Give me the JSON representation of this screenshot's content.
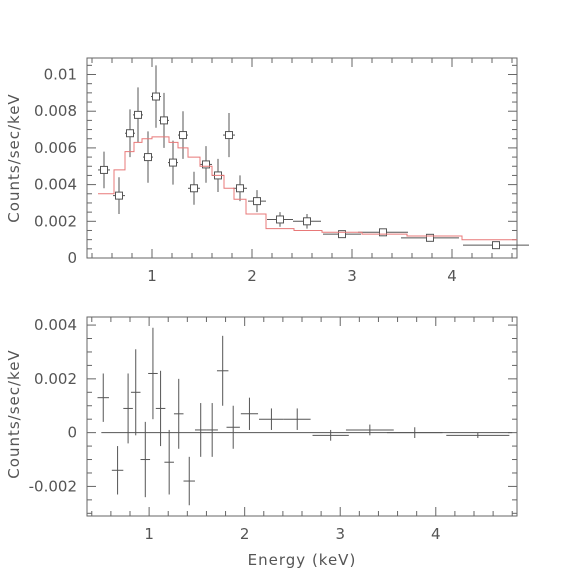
{
  "chart_data": [
    {
      "type": "scatter",
      "title": "",
      "xlabel": "",
      "ylabel": "Counts/sec/keV",
      "xlim": [
        0.35,
        4.65
      ],
      "ylim": [
        0,
        0.0109
      ],
      "x_ticks": [
        1,
        2,
        3,
        4
      ],
      "x_tick_labels": [
        "1",
        "2",
        "3",
        "4"
      ],
      "y_ticks": [
        0,
        0.002,
        0.004,
        0.006,
        0.008,
        0.01
      ],
      "y_tick_labels": [
        "0",
        "0.002",
        "0.004",
        "0.006",
        "0.008",
        "0.01"
      ],
      "grid": false,
      "colors": {
        "data": "#555555",
        "model": "#e87878",
        "axes": "#666666"
      },
      "series": [
        {
          "kind": "data-points",
          "x": [
            0.52,
            0.67,
            0.78,
            0.86,
            0.96,
            1.04,
            1.12,
            1.21,
            1.31,
            1.42,
            1.54,
            1.66,
            1.77,
            1.88,
            2.05,
            2.28,
            2.55,
            2.9,
            3.31,
            3.78,
            4.44
          ],
          "xerr": [
            0.06,
            0.06,
            0.05,
            0.05,
            0.05,
            0.05,
            0.05,
            0.05,
            0.05,
            0.06,
            0.06,
            0.06,
            0.06,
            0.07,
            0.09,
            0.13,
            0.14,
            0.19,
            0.25,
            0.29,
            0.33
          ],
          "y": [
            0.0048,
            0.0034,
            0.0068,
            0.0078,
            0.0055,
            0.0088,
            0.0075,
            0.0052,
            0.0067,
            0.0038,
            0.0051,
            0.0045,
            0.0067,
            0.0038,
            0.0031,
            0.0021,
            0.002,
            0.0013,
            0.0014,
            0.0011,
            0.0007
          ],
          "yerr": [
            0.001,
            0.001,
            0.0013,
            0.0015,
            0.0014,
            0.0017,
            0.0015,
            0.0012,
            0.0013,
            0.0009,
            0.001,
            0.0009,
            0.0012,
            0.0007,
            0.0006,
            0.0004,
            0.0004,
            0.0002,
            0.0002,
            0.0002,
            0.0001
          ]
        },
        {
          "kind": "model-step",
          "x_edges": [
            0.46,
            0.62,
            0.73,
            0.82,
            0.9,
            1.0,
            1.1,
            1.17,
            1.26,
            1.36,
            1.48,
            1.6,
            1.72,
            1.82,
            1.94,
            2.14,
            2.42,
            2.7,
            3.1,
            3.55,
            4.1,
            4.65
          ],
          "y": [
            0.0035,
            0.0048,
            0.0058,
            0.0063,
            0.0065,
            0.0066,
            0.0066,
            0.0063,
            0.006,
            0.0055,
            0.005,
            0.0045,
            0.0038,
            0.0032,
            0.0024,
            0.0016,
            0.0015,
            0.0014,
            0.0013,
            0.0012,
            0.001
          ]
        }
      ]
    },
    {
      "type": "scatter",
      "title": "",
      "xlabel": "Energy (keV)",
      "ylabel": "Counts/sec/keV",
      "xlim": [
        0.35,
        4.85
      ],
      "ylim": [
        -0.0031,
        0.0043
      ],
      "x_ticks": [
        1,
        2,
        3,
        4
      ],
      "x_tick_labels": [
        "1",
        "2",
        "3",
        "4"
      ],
      "y_ticks": [
        -0.002,
        0,
        0.002,
        0.004
      ],
      "y_tick_labels": [
        "-0.002",
        "0",
        "0.002",
        "0.004"
      ],
      "grid": false,
      "zero_line": 0,
      "series": [
        {
          "kind": "residuals",
          "x": [
            0.52,
            0.67,
            0.78,
            0.86,
            0.96,
            1.04,
            1.12,
            1.21,
            1.31,
            1.42,
            1.54,
            1.66,
            1.77,
            1.88,
            2.05,
            2.28,
            2.55,
            2.9,
            3.31,
            3.78,
            4.44
          ],
          "xerr": [
            0.06,
            0.06,
            0.05,
            0.05,
            0.05,
            0.05,
            0.05,
            0.05,
            0.05,
            0.06,
            0.06,
            0.06,
            0.06,
            0.07,
            0.09,
            0.13,
            0.14,
            0.19,
            0.25,
            0.29,
            0.33
          ],
          "y": [
            0.0013,
            -0.0014,
            0.0009,
            0.0015,
            -0.001,
            0.0022,
            0.0009,
            -0.0011,
            0.0007,
            -0.0018,
            0.0001,
            0.0001,
            0.0023,
            0.0002,
            0.0007,
            0.0005,
            0.0005,
            -0.0001,
            0.0001,
            0.0,
            -0.0001
          ],
          "yerr": [
            0.0009,
            0.0009,
            0.0013,
            0.0016,
            0.0014,
            0.0017,
            0.0014,
            0.0012,
            0.0013,
            0.0009,
            0.001,
            0.001,
            0.0013,
            0.0008,
            0.0006,
            0.0004,
            0.0004,
            0.0002,
            0.0002,
            0.0002,
            0.0001
          ]
        }
      ]
    }
  ]
}
